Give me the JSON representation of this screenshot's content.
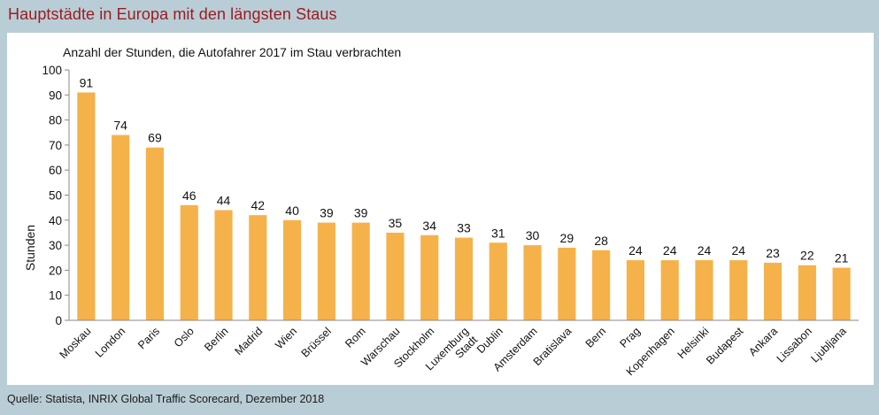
{
  "header": {
    "title": "Hauptstädte in Europa mit den längsten Staus"
  },
  "footer": {
    "source": "Quelle: Statista, INRIX Global Traffic Scorecard, Dezember 2018"
  },
  "colors": {
    "bar": "#f5b24a",
    "title": "#9b1b1f",
    "background": "#b9cdd6"
  },
  "chart_data": {
    "type": "bar",
    "subtitle": "Anzahl der Stunden, die Autofahrer 2017 im Stau verbrachten",
    "xlabel": "",
    "ylabel": "Stunden",
    "ylim": [
      0,
      100
    ],
    "yticks": [
      0,
      10,
      20,
      30,
      40,
      50,
      60,
      70,
      80,
      90,
      100
    ],
    "grid": false,
    "legend": "none",
    "categories": [
      "Moskau",
      "London",
      "Paris",
      "Oslo",
      "Berlin",
      "Madrid",
      "Wien",
      "Brüssel",
      "Rom",
      "Warschau",
      "Stockholm",
      "Luxemburg Stadt",
      "Dublin",
      "Amsterdam",
      "Bratislava",
      "Bern",
      "Prag",
      "Kopenhagen",
      "Helsinki",
      "Budapest",
      "Ankara",
      "Lissabon",
      "Ljubljana"
    ],
    "values": [
      91,
      74,
      69,
      46,
      44,
      42,
      40,
      39,
      39,
      35,
      34,
      33,
      31,
      30,
      29,
      28,
      24,
      24,
      24,
      24,
      23,
      22,
      21
    ]
  }
}
